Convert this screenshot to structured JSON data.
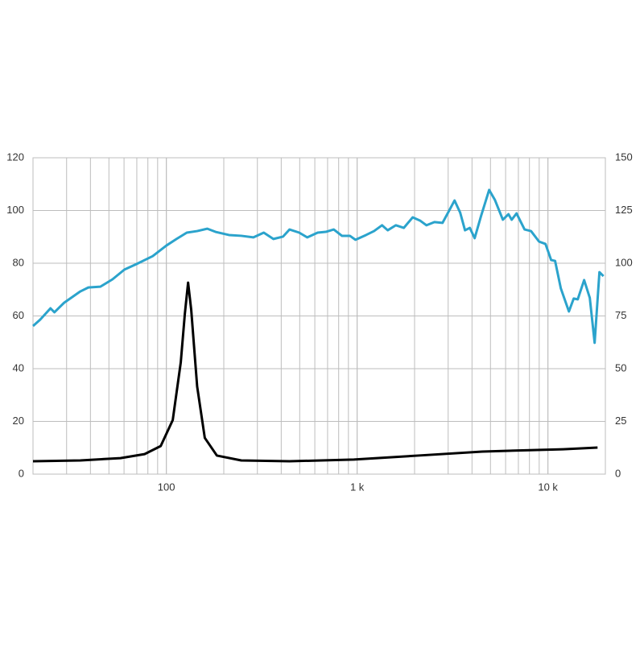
{
  "chart_data": {
    "type": "line",
    "xlog": true,
    "grid": true,
    "minor_grid": true,
    "xlim": [
      20,
      20000
    ],
    "xticks": [
      100,
      {
        "value": 1000,
        "label": "1 k"
      },
      {
        "value": 10000,
        "label": "10 k"
      }
    ],
    "ylim": [
      0,
      120
    ],
    "yticks": [
      0,
      20,
      40,
      60,
      80,
      100,
      120
    ],
    "y2lim": [
      0,
      150
    ],
    "y2ticks": [
      0,
      25,
      50,
      75,
      100,
      125,
      150
    ],
    "series": [
      {
        "color": "#2ba3cc",
        "axis": "y",
        "x": [
          20,
          21.8,
          24.7,
          25.9,
          29.1,
          35.4,
          39,
          45.1,
          52.2,
          60.3,
          69.8,
          84.8,
          100,
          113,
          128,
          145,
          164,
          181,
          213,
          247,
          286,
          324,
          364,
          409,
          442,
          497,
          548,
          621,
          685,
          754,
          832,
          916,
          980,
          1113,
          1226,
          1351,
          1446,
          1594,
          1756,
          1955,
          2134,
          2307,
          2542,
          2802,
          3027,
          3240,
          3468,
          3676,
          3896,
          4130,
          4465,
          4920,
          5267,
          5804,
          6212,
          6458,
          6845,
          7544,
          8155,
          8986,
          9713,
          10400,
          10900,
          11680,
          12880,
          13650,
          14330,
          15480,
          16570,
          17570,
          18620,
          19550
        ],
        "values": [
          56.2,
          58.6,
          62.9,
          61.4,
          65,
          69.3,
          70.8,
          71.1,
          73.9,
          77.6,
          79.7,
          82.7,
          86.7,
          89.2,
          91.6,
          92.2,
          93.1,
          91.9,
          90.7,
          90.4,
          89.8,
          91.6,
          89.2,
          90.1,
          92.8,
          91.6,
          89.8,
          91.6,
          91.9,
          92.8,
          90.4,
          90.4,
          88.9,
          90.7,
          92.2,
          94.4,
          92.5,
          94.4,
          93.4,
          97.4,
          96.2,
          94.4,
          95.6,
          95.3,
          99.8,
          103.8,
          99.2,
          92.5,
          93.4,
          89.5,
          98,
          107.8,
          104.1,
          96.5,
          98.6,
          96.5,
          98.9,
          92.8,
          92.2,
          88.2,
          87.3,
          81.2,
          80.9,
          70.5,
          61.7,
          66.6,
          66.3,
          73.6,
          66.9,
          49.8,
          76.6,
          75.1
        ]
      },
      {
        "color": "#000000",
        "axis": "y2",
        "x": [
          20,
          35.4,
          57.5,
          76.9,
          93.4,
          108,
          119,
          125,
          130,
          135,
          145,
          159,
          184,
          247,
          442,
          962,
          2090,
          4530,
          12000,
          18200
        ],
        "values": [
          6.1,
          6.5,
          7.6,
          9.5,
          13.3,
          25.6,
          53,
          76,
          90.8,
          77.9,
          41.6,
          17.2,
          8.8,
          6.5,
          6.1,
          6.9,
          8.8,
          10.7,
          11.8,
          12.6
        ]
      }
    ]
  }
}
